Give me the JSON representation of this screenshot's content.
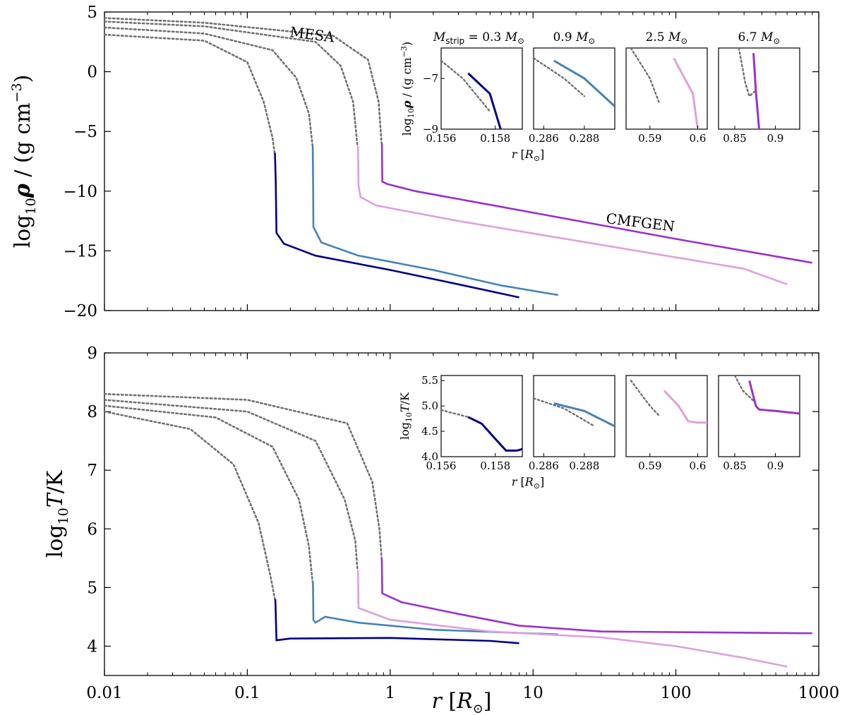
{
  "chart_data": [
    {
      "type": "line",
      "panel": "top",
      "ylabel": "log10 ρ / (g cm−3)",
      "xlabel": "",
      "xscale": "log",
      "xlim": [
        0.01,
        1000
      ],
      "ylim": [
        -20,
        5
      ],
      "xticks": [
        "0.01",
        "0.1",
        "1",
        "10",
        "100",
        "1000"
      ],
      "yticks": [
        "5",
        "0",
        "−5",
        "−10",
        "−15",
        "−20"
      ],
      "annotations": [
        "MESA",
        "CMFGEN"
      ],
      "series": [
        {
          "color": "#000080",
          "mesa": [
            [
              0.01,
              3.1
            ],
            [
              0.05,
              2.6
            ],
            [
              0.1,
              0.8
            ],
            [
              0.13,
              -2.5
            ],
            [
              0.15,
              -5.5
            ],
            [
              0.156,
              -7.0
            ]
          ],
          "cmfgen": [
            [
              0.156,
              -6.8
            ],
            [
              0.158,
              -9
            ],
            [
              0.16,
              -13.5
            ],
            [
              0.18,
              -14.4
            ],
            [
              0.3,
              -15.4
            ],
            [
              1,
              -16.6
            ],
            [
              3,
              -17.8
            ],
            [
              8,
              -18.9
            ]
          ]
        },
        {
          "color": "#4682B4",
          "mesa": [
            [
              0.01,
              3.7
            ],
            [
              0.05,
              3.2
            ],
            [
              0.15,
              1.8
            ],
            [
              0.22,
              -0.5
            ],
            [
              0.27,
              -3.5
            ],
            [
              0.286,
              -6.2
            ]
          ],
          "cmfgen": [
            [
              0.287,
              -6.2
            ],
            [
              0.289,
              -10
            ],
            [
              0.29,
              -13.0
            ],
            [
              0.33,
              -14.3
            ],
            [
              0.6,
              -15.4
            ],
            [
              2,
              -16.6
            ],
            [
              6,
              -17.9
            ],
            [
              15,
              -18.7
            ]
          ]
        },
        {
          "color": "#DDA0DD",
          "mesa": [
            [
              0.01,
              4.2
            ],
            [
              0.05,
              3.8
            ],
            [
              0.3,
              2.5
            ],
            [
              0.45,
              0.5
            ],
            [
              0.55,
              -2.5
            ],
            [
              0.59,
              -6.2
            ]
          ],
          "cmfgen": [
            [
              0.595,
              -6.2
            ],
            [
              0.6,
              -9.5
            ],
            [
              0.62,
              -10.5
            ],
            [
              0.8,
              -11.2
            ],
            [
              3,
              -12.5
            ],
            [
              30,
              -14.5
            ],
            [
              300,
              -16.5
            ],
            [
              600,
              -17.8
            ]
          ]
        },
        {
          "color": "#9932CC",
          "mesa": [
            [
              0.01,
              4.5
            ],
            [
              0.05,
              4.1
            ],
            [
              0.4,
              3.0
            ],
            [
              0.7,
              1.0
            ],
            [
              0.83,
              -2.5
            ],
            [
              0.87,
              -6.0
            ]
          ],
          "cmfgen": [
            [
              0.875,
              -6.0
            ],
            [
              0.88,
              -9.2
            ],
            [
              0.95,
              -9.4
            ],
            [
              1.5,
              -10.0
            ],
            [
              10,
              -11.8
            ],
            [
              100,
              -14.0
            ],
            [
              900,
              -16.0
            ]
          ]
        }
      ],
      "insets": [
        {
          "title": "Mstrip = 0.3 M⊙",
          "xlim": [
            0.156,
            0.159
          ],
          "xticks": [
            "0.156",
            "0.158"
          ],
          "ylim": [
            -9,
            -5.8
          ],
          "yticks": [
            "−7",
            "−9"
          ],
          "mesa": [
            [
              0.156,
              -6.3
            ],
            [
              0.1568,
              -7.0
            ],
            [
              0.1578,
              -8.3
            ]
          ],
          "cmfgen": [
            [
              0.157,
              -6.8
            ],
            [
              0.1578,
              -7.6
            ],
            [
              0.1582,
              -9
            ]
          ]
        },
        {
          "title": "0.9 M⊙",
          "xlim": [
            0.2855,
            0.2895
          ],
          "xticks": [
            "0.286",
            "0.288"
          ],
          "ylim": [
            -9,
            -5.8
          ],
          "yticks": [],
          "mesa": [
            [
              0.2855,
              -6.2
            ],
            [
              0.287,
              -7.0
            ],
            [
              0.288,
              -7.7
            ]
          ],
          "cmfgen": [
            [
              0.2865,
              -6.3
            ],
            [
              0.288,
              -7.0
            ],
            [
              0.2895,
              -8.1
            ]
          ]
        },
        {
          "title": "2.5 M⊙",
          "xlim": [
            0.585,
            0.602
          ],
          "xticks": [
            "0.59",
            "0.6"
          ],
          "ylim": [
            -9,
            -5.8
          ],
          "yticks": [],
          "mesa": [
            [
              0.586,
              -5.8
            ],
            [
              0.59,
              -7.0
            ],
            [
              0.592,
              -8.0
            ]
          ],
          "cmfgen": [
            [
              0.595,
              -6.2
            ],
            [
              0.599,
              -7.6
            ],
            [
              0.6,
              -9.0
            ]
          ]
        },
        {
          "title": "6.7 M⊙",
          "xlim": [
            0.83,
            0.93
          ],
          "xticks": [
            "0.85",
            "0.9"
          ],
          "ylim": [
            -9,
            -5.8
          ],
          "yticks": [],
          "mesa": [
            [
              0.855,
              -5.8
            ],
            [
              0.863,
              -7.2
            ],
            [
              0.868,
              -7.7
            ],
            [
              0.875,
              -7.5
            ]
          ],
          "cmfgen": [
            [
              0.873,
              -6.0
            ],
            [
              0.876,
              -7.5
            ],
            [
              0.88,
              -9.0
            ]
          ]
        }
      ],
      "inset_ylabel": "log10 ρ / (g cm−3)",
      "inset_xlabel": "r [R⊙]"
    },
    {
      "type": "line",
      "panel": "bottom",
      "ylabel": "log10 T/K",
      "xlabel": "r [R⊙]",
      "xscale": "log",
      "xlim": [
        0.01,
        1000
      ],
      "ylim": [
        3.5,
        9
      ],
      "xticks": [
        "0.01",
        "0.1",
        "1",
        "10",
        "100",
        "1000"
      ],
      "yticks": [
        "9",
        "8",
        "7",
        "6",
        "5",
        "4"
      ],
      "series": [
        {
          "color": "#000080",
          "mesa": [
            [
              0.01,
              8.0
            ],
            [
              0.04,
              7.7
            ],
            [
              0.08,
              7.1
            ],
            [
              0.12,
              6.1
            ],
            [
              0.145,
              5.2
            ],
            [
              0.156,
              4.8
            ]
          ],
          "cmfgen": [
            [
              0.157,
              4.8
            ],
            [
              0.16,
              4.1
            ],
            [
              0.2,
              4.13
            ],
            [
              1,
              4.14
            ],
            [
              5,
              4.09
            ],
            [
              8,
              4.05
            ]
          ]
        },
        {
          "color": "#4682B4",
          "mesa": [
            [
              0.01,
              8.1
            ],
            [
              0.06,
              7.9
            ],
            [
              0.15,
              7.4
            ],
            [
              0.23,
              6.5
            ],
            [
              0.27,
              5.7
            ],
            [
              0.286,
              5.1
            ]
          ],
          "cmfgen": [
            [
              0.288,
              5.1
            ],
            [
              0.29,
              4.45
            ],
            [
              0.3,
              4.4
            ],
            [
              0.35,
              4.5
            ],
            [
              0.6,
              4.4
            ],
            [
              2,
              4.28
            ],
            [
              15,
              4.2
            ]
          ]
        },
        {
          "color": "#DDA0DD",
          "mesa": [
            [
              0.01,
              8.2
            ],
            [
              0.1,
              8.0
            ],
            [
              0.3,
              7.5
            ],
            [
              0.48,
              6.5
            ],
            [
              0.57,
              5.8
            ],
            [
              0.59,
              5.3
            ]
          ],
          "cmfgen": [
            [
              0.595,
              5.3
            ],
            [
              0.6,
              4.65
            ],
            [
              1,
              4.45
            ],
            [
              5,
              4.25
            ],
            [
              30,
              4.15
            ],
            [
              100,
              4.0
            ],
            [
              300,
              3.8
            ],
            [
              600,
              3.65
            ]
          ]
        },
        {
          "color": "#9932CC",
          "mesa": [
            [
              0.01,
              8.3
            ],
            [
              0.1,
              8.2
            ],
            [
              0.5,
              7.8
            ],
            [
              0.75,
              6.8
            ],
            [
              0.84,
              6.0
            ],
            [
              0.87,
              5.5
            ]
          ],
          "cmfgen": [
            [
              0.873,
              5.5
            ],
            [
              0.88,
              4.9
            ],
            [
              1.2,
              4.75
            ],
            [
              3,
              4.55
            ],
            [
              8,
              4.35
            ],
            [
              30,
              4.25
            ],
            [
              900,
              4.22
            ]
          ]
        }
      ],
      "insets": [
        {
          "xlim": [
            0.156,
            0.159
          ],
          "xticks": [
            "0.156",
            "0.158"
          ],
          "ylim": [
            4.0,
            5.6
          ],
          "yticks": [
            "5.5",
            "5.0",
            "4.5",
            "4.0"
          ],
          "mesa": [
            [
              0.156,
              4.92
            ],
            [
              0.1565,
              4.85
            ],
            [
              0.157,
              4.78
            ]
          ],
          "cmfgen": [
            [
              0.157,
              4.78
            ],
            [
              0.1575,
              4.65
            ],
            [
              0.158,
              4.35
            ],
            [
              0.1584,
              4.12
            ],
            [
              0.1588,
              4.12
            ],
            [
              0.159,
              4.15
            ]
          ]
        },
        {
          "xlim": [
            0.2855,
            0.2895
          ],
          "xticks": [
            "0.286",
            "0.288"
          ],
          "ylim": [
            4.0,
            5.6
          ],
          "yticks": [],
          "mesa": [
            [
              0.2855,
              5.15
            ],
            [
              0.287,
              4.95
            ],
            [
              0.2885,
              4.6
            ]
          ],
          "cmfgen": [
            [
              0.2865,
              5.05
            ],
            [
              0.288,
              4.9
            ],
            [
              0.2895,
              4.6
            ]
          ]
        },
        {
          "xlim": [
            0.585,
            0.602
          ],
          "xticks": [
            "0.59",
            "0.6"
          ],
          "ylim": [
            4.0,
            5.6
          ],
          "yticks": [],
          "mesa": [
            [
              0.586,
              5.5
            ],
            [
              0.59,
              5.0
            ],
            [
              0.592,
              4.8
            ]
          ],
          "cmfgen": [
            [
              0.593,
              5.3
            ],
            [
              0.596,
              5.0
            ],
            [
              0.598,
              4.7
            ],
            [
              0.6,
              4.67
            ],
            [
              0.602,
              4.67
            ]
          ]
        },
        {
          "xlim": [
            0.83,
            0.93
          ],
          "xticks": [
            "0.85",
            "0.9"
          ],
          "ylim": [
            4.0,
            5.6
          ],
          "yticks": [],
          "mesa": [
            [
              0.85,
              5.6
            ],
            [
              0.86,
              5.3
            ],
            [
              0.873,
              5.1
            ]
          ],
          "cmfgen": [
            [
              0.868,
              5.5
            ],
            [
              0.876,
              5.0
            ],
            [
              0.88,
              4.93
            ],
            [
              0.9,
              4.9
            ],
            [
              0.93,
              4.85
            ]
          ]
        }
      ],
      "inset_ylabel": "log10 T/K",
      "inset_xlabel": "r [R⊙]"
    }
  ]
}
